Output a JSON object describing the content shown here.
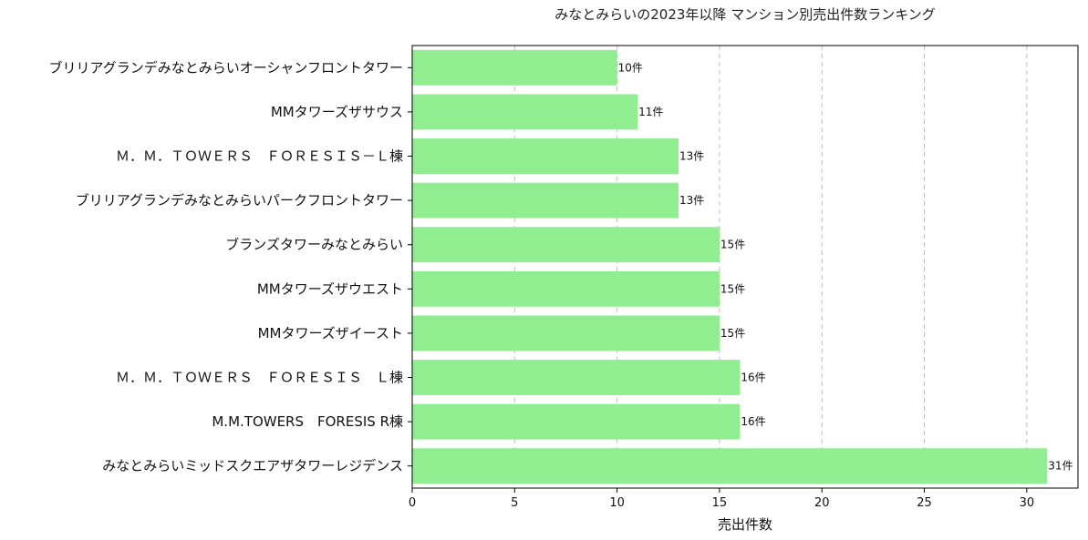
{
  "chart_data": {
    "type": "bar",
    "orientation": "horizontal",
    "title": "みなとみらいの2023年以降 マンション別売出件数ランキング",
    "xlabel": "売出件数",
    "ylabel": "",
    "xlim": [
      0,
      32.5
    ],
    "xticks": [
      0,
      5,
      10,
      15,
      20,
      25,
      30
    ],
    "grid": "x-dashed",
    "bar_color": "#90ee90",
    "value_suffix": "件",
    "categories": [
      "ブリリアグランデみなとみらいオーシャンフロントタワー",
      "MMタワーズザサウス",
      "Ｍ．Ｍ．ＴＯＷＥＲＳ　ＦＯＲＥＳＩＳ－Ｌ棟",
      "ブリリアグランデみなとみらいパークフロントタワー",
      "ブランズタワーみなとみらい",
      "MMタワーズザウエスト",
      "MMタワーズザイースト",
      "Ｍ．Ｍ．ＴＯＷＥＲＳ　ＦＯＲＥＳＩＳ　Ｌ棟",
      "M.M.TOWERS　FORESIS R棟",
      "みなとみらいミッドスクエアザタワーレジデンス"
    ],
    "values": [
      10,
      11,
      13,
      13,
      15,
      15,
      15,
      16,
      16,
      31
    ]
  }
}
